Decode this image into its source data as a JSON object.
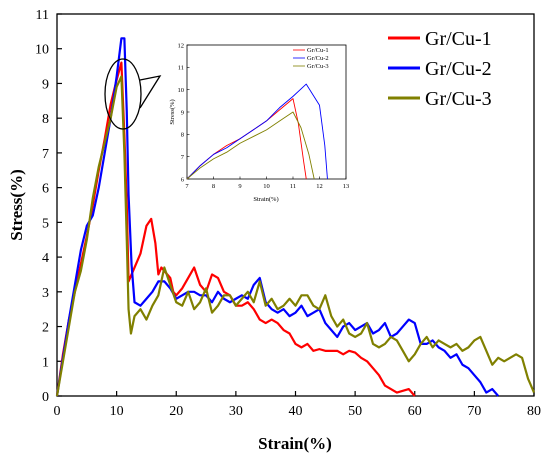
{
  "chart_data": {
    "type": "line",
    "xlabel": "Strain(%)",
    "ylabel": "Stress(%)",
    "xlim": [
      0,
      80
    ],
    "ylim": [
      0,
      11
    ],
    "xticks": [
      "0",
      "10",
      "20",
      "30",
      "40",
      "50",
      "60",
      "70",
      "80"
    ],
    "yticks": [
      "0",
      "1",
      "2",
      "3",
      "4",
      "5",
      "6",
      "7",
      "8",
      "9",
      "10",
      "11"
    ],
    "grid": false,
    "legend_position": "top-right",
    "series": [
      {
        "name": "Gr/Cu-1",
        "color": "#ff0000",
        "x": [
          0,
          1,
          2,
          3,
          4,
          5,
          6,
          7,
          8,
          9,
          10,
          10.8,
          11.3,
          11.7,
          12,
          13,
          14,
          15,
          15.8,
          16.5,
          17,
          17.5,
          18,
          19,
          19.5,
          20,
          21,
          22,
          23,
          24,
          25,
          26,
          27,
          28,
          29,
          30,
          31,
          32,
          33,
          34,
          35,
          36,
          37,
          38,
          39,
          40,
          41,
          42,
          43,
          44,
          45,
          46,
          47,
          48,
          49,
          50,
          51,
          52,
          53,
          54,
          55,
          56,
          57,
          58,
          59,
          60
        ],
        "y": [
          0,
          1.2,
          2.2,
          3.0,
          3.8,
          4.6,
          5.5,
          6.5,
          7.4,
          8.4,
          9.1,
          9.6,
          7.5,
          5.5,
          3.3,
          3.7,
          4.1,
          4.9,
          5.1,
          4.4,
          3.5,
          3.7,
          3.6,
          3.4,
          3.0,
          2.9,
          3.1,
          3.4,
          3.7,
          3.2,
          3.0,
          3.5,
          3.4,
          3.0,
          2.9,
          2.6,
          2.6,
          2.7,
          2.5,
          2.2,
          2.1,
          2.2,
          2.1,
          1.9,
          1.8,
          1.5,
          1.4,
          1.5,
          1.3,
          1.35,
          1.3,
          1.3,
          1.3,
          1.2,
          1.3,
          1.25,
          1.1,
          1.0,
          0.8,
          0.6,
          0.3,
          0.2,
          0.1,
          0.15,
          0.2,
          0
        ]
      },
      {
        "name": "Gr/Cu-2",
        "color": "#0000ff",
        "x": [
          0,
          1,
          2,
          3,
          4,
          5,
          6,
          7,
          8,
          9,
          10,
          10.8,
          11.3,
          11.7,
          12,
          12.5,
          13,
          14,
          15,
          16,
          17,
          18,
          19,
          20,
          21,
          22,
          23,
          24,
          25,
          26,
          27,
          28,
          29,
          30,
          31,
          32,
          33,
          34,
          35,
          36,
          37,
          38,
          39,
          40,
          41,
          42,
          43,
          44,
          45,
          46,
          47,
          48,
          49,
          50,
          51,
          52,
          53,
          54,
          55,
          56,
          57,
          58,
          59,
          60,
          61,
          62,
          63,
          64,
          65,
          66,
          67,
          68,
          69,
          70,
          71,
          72,
          73,
          74
        ],
        "y": [
          0,
          1.1,
          2.2,
          3.2,
          4.2,
          4.9,
          5.2,
          6.0,
          7.0,
          8.0,
          9.2,
          10.3,
          10.3,
          8.2,
          5.8,
          3.8,
          2.7,
          2.6,
          2.8,
          3.0,
          3.3,
          3.3,
          3.1,
          2.8,
          2.9,
          3.0,
          3.0,
          2.9,
          2.9,
          2.7,
          3.0,
          2.8,
          2.7,
          2.8,
          2.9,
          2.8,
          3.2,
          3.4,
          2.7,
          2.5,
          2.4,
          2.5,
          2.3,
          2.4,
          2.6,
          2.3,
          2.4,
          2.5,
          2.1,
          1.9,
          1.7,
          2.0,
          2.1,
          1.9,
          2.0,
          2.1,
          1.8,
          1.9,
          2.1,
          1.7,
          1.8,
          2.0,
          2.2,
          2.1,
          1.5,
          1.5,
          1.6,
          1.4,
          1.3,
          1.1,
          1.2,
          0.9,
          0.8,
          0.6,
          0.4,
          0.1,
          0.2,
          0
        ]
      },
      {
        "name": "Gr/Cu-3",
        "color": "#808000",
        "x": [
          0,
          1,
          2,
          3,
          4,
          5,
          6,
          7,
          8,
          9,
          10,
          10.8,
          11.3,
          11.7,
          12,
          12.4,
          13,
          14,
          15,
          16,
          17,
          18,
          19,
          20,
          21,
          22,
          23,
          24,
          25,
          26,
          27,
          28,
          29,
          30,
          31,
          32,
          33,
          34,
          35,
          36,
          37,
          38,
          39,
          40,
          41,
          42,
          43,
          44,
          45,
          46,
          47,
          48,
          49,
          50,
          51,
          52,
          53,
          54,
          55,
          56,
          57,
          58,
          59,
          60,
          61,
          62,
          63,
          64,
          65,
          66,
          67,
          68,
          69,
          70,
          71,
          72,
          73,
          74,
          75,
          76,
          77,
          78,
          79,
          80
        ],
        "y": [
          0,
          1.0,
          2.0,
          3.0,
          3.6,
          4.5,
          5.7,
          6.6,
          7.3,
          8.0,
          8.9,
          9.2,
          7.0,
          4.5,
          2.5,
          1.8,
          2.3,
          2.5,
          2.2,
          2.6,
          2.9,
          3.7,
          3.2,
          2.7,
          2.6,
          3.0,
          2.5,
          2.7,
          3.1,
          2.4,
          2.6,
          2.9,
          2.9,
          2.6,
          2.8,
          3.0,
          2.7,
          3.3,
          2.6,
          2.8,
          2.5,
          2.6,
          2.8,
          2.6,
          2.9,
          2.9,
          2.6,
          2.5,
          2.9,
          2.3,
          2.0,
          2.2,
          1.8,
          1.7,
          1.8,
          2.1,
          1.5,
          1.4,
          1.5,
          1.7,
          1.6,
          1.3,
          1.0,
          1.2,
          1.5,
          1.7,
          1.4,
          1.6,
          1.5,
          1.4,
          1.5,
          1.3,
          1.4,
          1.6,
          1.7,
          1.3,
          0.9,
          1.1,
          1.0,
          1.1,
          1.2,
          1.1,
          0.5,
          0.1
        ]
      }
    ],
    "inset": {
      "type": "line",
      "xlabel": "Strain(%)",
      "ylabel": "Stress(%)",
      "xlim": [
        7,
        13
      ],
      "ylim": [
        6,
        12
      ],
      "xticks": [
        "7",
        "8",
        "9",
        "10",
        "11",
        "12",
        "13"
      ],
      "yticks": [
        "6",
        "7",
        "8",
        "9",
        "10",
        "11",
        "12"
      ],
      "legend_position": "top-left",
      "series": [
        {
          "name": "Gr/Cu-1",
          "color": "#ff0000",
          "x": [
            7,
            7.5,
            8,
            8.5,
            9,
            9.5,
            10,
            10.5,
            11,
            11.2,
            11.4,
            11.5
          ],
          "y": [
            6.0,
            6.6,
            7.1,
            7.5,
            7.8,
            8.2,
            8.6,
            9.1,
            9.6,
            8.5,
            6.8,
            6.0
          ]
        },
        {
          "name": "Gr/Cu-2",
          "color": "#0000ff",
          "x": [
            7,
            7.5,
            8,
            8.5,
            9,
            9.5,
            10,
            10.5,
            11,
            11.5,
            12,
            12.2,
            12.3
          ],
          "y": [
            6.0,
            6.6,
            7.1,
            7.4,
            7.8,
            8.2,
            8.6,
            9.2,
            9.7,
            10.25,
            9.3,
            7.5,
            6.0
          ]
        },
        {
          "name": "Gr/Cu-3",
          "color": "#808000",
          "x": [
            7,
            7.5,
            8,
            8.5,
            9,
            9.5,
            10,
            10.5,
            11,
            11.3,
            11.6,
            11.8
          ],
          "y": [
            6.0,
            6.5,
            6.9,
            7.2,
            7.6,
            7.9,
            8.2,
            8.6,
            9.0,
            8.3,
            7.1,
            6.0
          ]
        }
      ]
    }
  }
}
